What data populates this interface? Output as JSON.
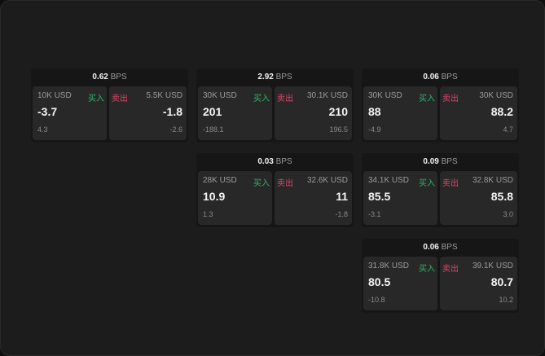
{
  "labels": {
    "unit": "BPS",
    "buy": "买入",
    "sell": "卖出"
  },
  "colors": {
    "buy": "#2fb36a",
    "sell": "#e0456a"
  },
  "cards": [
    {
      "spread": "0.62",
      "buy": {
        "size": "10K USD",
        "price": "-3.7",
        "change": "4.3"
      },
      "sell": {
        "size": "5.5K USD",
        "price": "-1.8",
        "change": "-2.6"
      }
    },
    {
      "spread": "2.92",
      "buy": {
        "size": "30K USD",
        "price": "201",
        "change": "-188.1"
      },
      "sell": {
        "size": "30.1K USD",
        "price": "210",
        "change": "196.5"
      }
    },
    {
      "spread": "0.06",
      "buy": {
        "size": "30K USD",
        "price": "88",
        "change": "-4.9"
      },
      "sell": {
        "size": "30K USD",
        "price": "88.2",
        "change": "4.7"
      }
    },
    {
      "spread": "0.03",
      "buy": {
        "size": "28K USD",
        "price": "10.9",
        "change": "1.3"
      },
      "sell": {
        "size": "32.6K USD",
        "price": "11",
        "change": "-1.8"
      }
    },
    {
      "spread": "0.09",
      "buy": {
        "size": "34.1K USD",
        "price": "85.5",
        "change": "-3.1"
      },
      "sell": {
        "size": "32.8K USD",
        "price": "85.8",
        "change": "3.0"
      }
    },
    {
      "spread": "0.06",
      "buy": {
        "size": "31.8K USD",
        "price": "80.5",
        "change": "-10.8"
      },
      "sell": {
        "size": "39.1K USD",
        "price": "80.7",
        "change": "10.2"
      }
    }
  ]
}
